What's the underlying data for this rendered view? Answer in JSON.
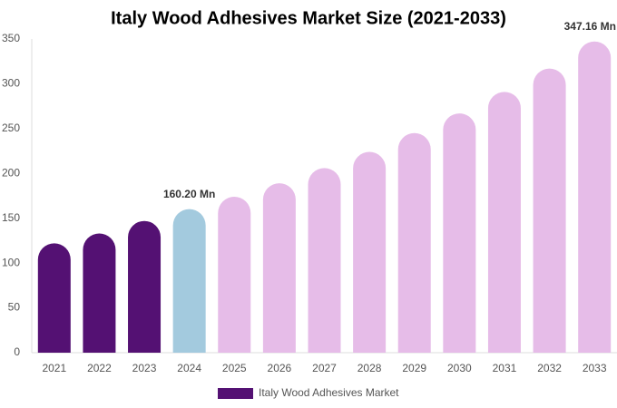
{
  "chart_data": {
    "type": "bar",
    "title": "Italy Wood Adhesives Market Size (2021-2033)",
    "categories": [
      "2021",
      "2022",
      "2023",
      "2024",
      "2025",
      "2026",
      "2027",
      "2028",
      "2029",
      "2030",
      "2031",
      "2032",
      "2033"
    ],
    "series": [
      {
        "name": "Italy Wood Adhesives Market",
        "color": "#541173",
        "values": [
          122,
          133,
          147,
          160.2,
          174,
          189,
          206,
          224,
          245,
          267,
          291,
          317,
          347.16
        ],
        "value_labels": [
          null,
          null,
          null,
          "160.20 Mn",
          null,
          null,
          null,
          null,
          null,
          null,
          null,
          null,
          "347.16 Mn"
        ],
        "colors": [
          "#541173",
          "#541173",
          "#541173",
          "#a3cade",
          "#e6bce8",
          "#e6bce8",
          "#e6bce8",
          "#e6bce8",
          "#e6bce8",
          "#e6bce8",
          "#e6bce8",
          "#e6bce8",
          "#e6bce8"
        ]
      }
    ],
    "ylim": [
      0,
      350
    ],
    "yticks": [
      0,
      50,
      100,
      150,
      200,
      250,
      300,
      350
    ],
    "grid": false,
    "legend": "bottom"
  }
}
